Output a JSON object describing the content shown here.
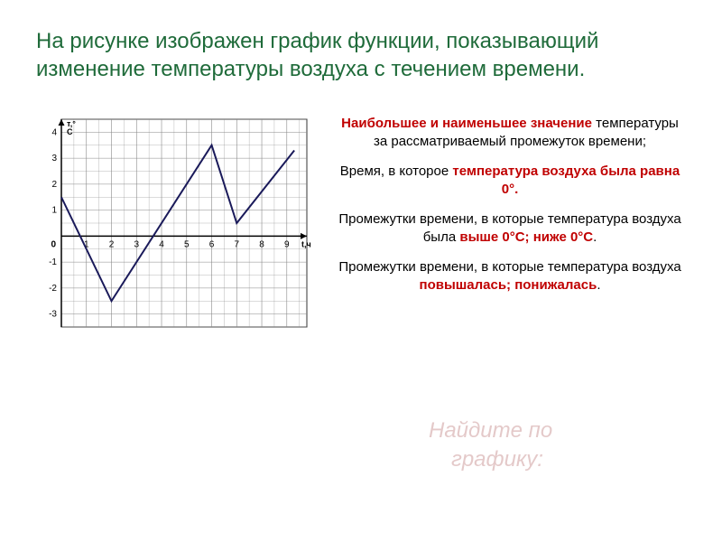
{
  "title": "На рисунке изображен график функции, показывающий изменение температуры воздуха с течением времени.",
  "chart": {
    "type": "line",
    "x_axis_label": "t,ч",
    "y_axis_label": "т,°\nС",
    "x_ticks": [
      0,
      1,
      2,
      3,
      4,
      5,
      6,
      7,
      8,
      9
    ],
    "y_ticks": [
      -3,
      -2,
      -1,
      1,
      2,
      3,
      4
    ],
    "x_range": [
      0,
      9.8
    ],
    "y_range": [
      -3.5,
      4.5
    ],
    "points": [
      {
        "x": 0,
        "y": 1.5
      },
      {
        "x": 2,
        "y": -2.5
      },
      {
        "x": 6,
        "y": 3.5
      },
      {
        "x": 7,
        "y": 0.5
      },
      {
        "x": 9.3,
        "y": 3.3
      }
    ],
    "grid_color": "#888888",
    "line_color": "#1a1a5a",
    "line_width": 2,
    "background_color": "#ffffff",
    "grid_step": 0.5,
    "origin_label": "0"
  },
  "texts": {
    "p1_a": "Наибольшее и наименьшее значение",
    "p1_b": " температуры за рассматриваемый промежуток времени;",
    "p2_a": "Время, в которое ",
    "p2_b": "температура воздуха была равна 0°.",
    "p3_a": "Промежутки времени, в которые температура воздуха была ",
    "p3_b": "выше 0°С; ниже 0°С",
    "p3_c": ".",
    "p4_a": "Промежутки времени, в которые температура воздуха ",
    "p4_b": "повышалась; понижалась",
    "p4_c": "."
  },
  "ghost": {
    "line1": "Найдите по",
    "line2": "графику:"
  }
}
